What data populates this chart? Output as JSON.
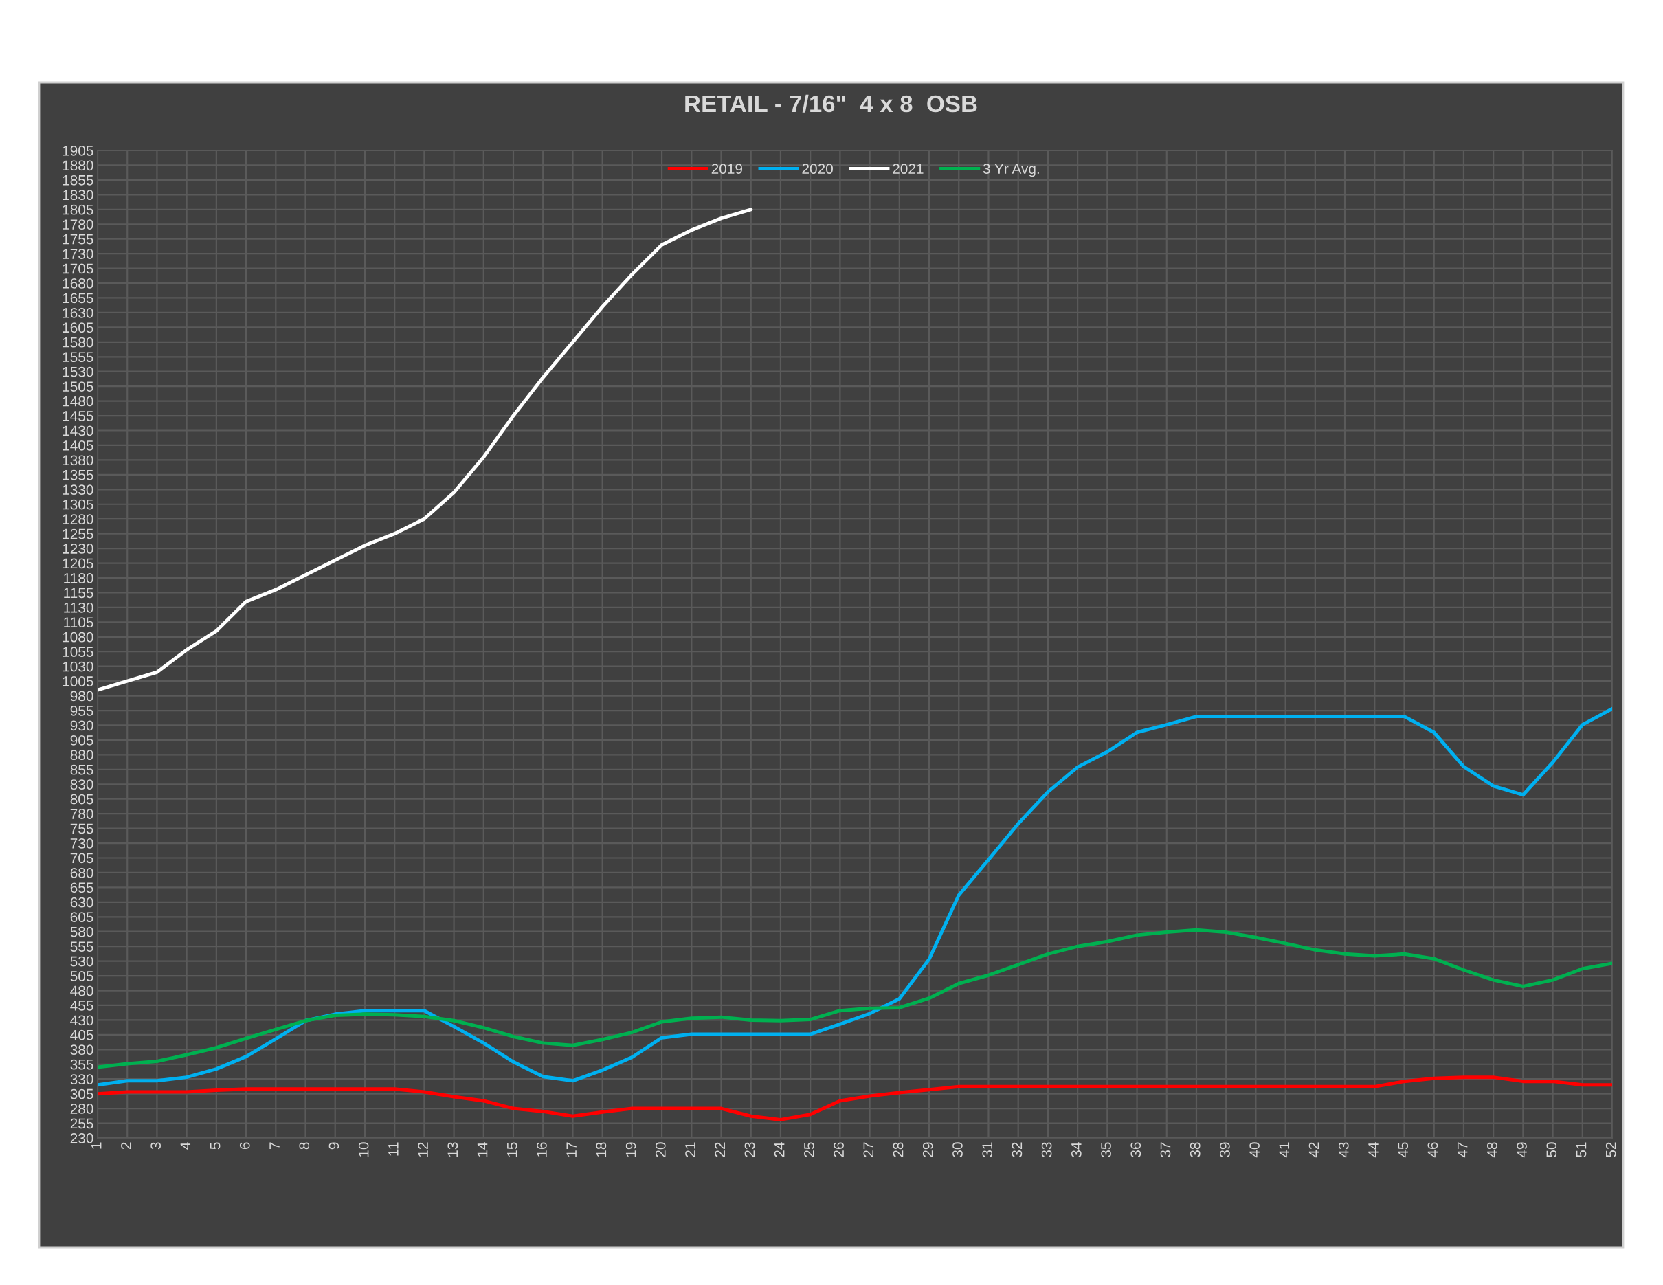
{
  "chart_data": {
    "type": "line",
    "title": "RETAIL - 7/16\"  4 x 8  OSB",
    "categories": [
      "1",
      "2",
      "3",
      "4",
      "5",
      "6",
      "7",
      "8",
      "9",
      "10",
      "11",
      "12",
      "13",
      "14",
      "15",
      "16",
      "17",
      "18",
      "19",
      "20",
      "21",
      "22",
      "23",
      "24",
      "25",
      "26",
      "27",
      "28",
      "29",
      "30",
      "31",
      "32",
      "33",
      "34",
      "35",
      "36",
      "37",
      "38",
      "39",
      "40",
      "41",
      "42",
      "43",
      "44",
      "45",
      "46",
      "47",
      "48",
      "49",
      "50",
      "51",
      "52"
    ],
    "series": [
      {
        "name": "2019",
        "color": "#ff0000",
        "values": [
          305,
          308,
          308,
          308,
          311,
          313,
          313,
          313,
          313,
          313,
          313,
          308,
          300,
          293,
          280,
          275,
          267,
          274,
          280,
          280,
          280,
          280,
          267,
          261,
          270,
          293,
          301,
          307,
          312,
          317,
          317,
          317,
          317,
          317,
          317,
          317,
          317,
          317,
          317,
          317,
          317,
          317,
          317,
          317,
          326,
          331,
          333,
          333,
          326,
          326,
          320,
          320
        ]
      },
      {
        "name": "2020",
        "color": "#00b0f0",
        "values": [
          320,
          327,
          327,
          333,
          347,
          368,
          398,
          429,
          440,
          446,
          446,
          446,
          419,
          391,
          359,
          334,
          327,
          345,
          367,
          400,
          406,
          406,
          406,
          406,
          406,
          423,
          441,
          466,
          533,
          642,
          702,
          763,
          817,
          859,
          885,
          918,
          931,
          945,
          945,
          945,
          945,
          945,
          945,
          945,
          945,
          918,
          860,
          827,
          812,
          867,
          931,
          958
        ]
      },
      {
        "name": "2021",
        "color": "#ffffff",
        "values": [
          990,
          1005,
          1020,
          1058,
          1090,
          1140,
          1160,
          1185,
          1210,
          1235,
          1255,
          1280,
          1325,
          1385,
          1455,
          1520,
          1580,
          1640,
          1695,
          1745,
          1770,
          1790,
          1805,
          null,
          null,
          null,
          null,
          null,
          null,
          null,
          null,
          null,
          null,
          null,
          null,
          null,
          null,
          null,
          null,
          null,
          null,
          null,
          null,
          null,
          null,
          null,
          null,
          null,
          null,
          null,
          null,
          null
        ]
      },
      {
        "name": "3 Yr Avg.",
        "color": "#00b050",
        "values": [
          350,
          356,
          360,
          371,
          383,
          399,
          414,
          429,
          438,
          440,
          439,
          436,
          429,
          417,
          402,
          391,
          387,
          397,
          409,
          427,
          433,
          435,
          430,
          429,
          431,
          446,
          450,
          451,
          467,
          492,
          506,
          524,
          542,
          555,
          563,
          574,
          579,
          583,
          579,
          570,
          560,
          549,
          542,
          539,
          542,
          534,
          515,
          498,
          487,
          498,
          517,
          526
        ]
      }
    ],
    "ylim": [
      230,
      1905
    ],
    "yticks": [
      230,
      255,
      280,
      305,
      330,
      355,
      380,
      405,
      430,
      455,
      480,
      505,
      530,
      555,
      580,
      605,
      630,
      655,
      680,
      705,
      730,
      755,
      780,
      805,
      830,
      855,
      880,
      905,
      930,
      955,
      980,
      1005,
      1030,
      1055,
      1080,
      1105,
      1130,
      1155,
      1180,
      1205,
      1230,
      1255,
      1280,
      1305,
      1330,
      1355,
      1380,
      1405,
      1430,
      1455,
      1480,
      1505,
      1530,
      1555,
      1580,
      1605,
      1630,
      1655,
      1680,
      1705,
      1730,
      1755,
      1780,
      1805,
      1830,
      1855,
      1880,
      1905
    ],
    "grid": true,
    "legend": "top",
    "marker": "none",
    "line_style": "solid"
  }
}
